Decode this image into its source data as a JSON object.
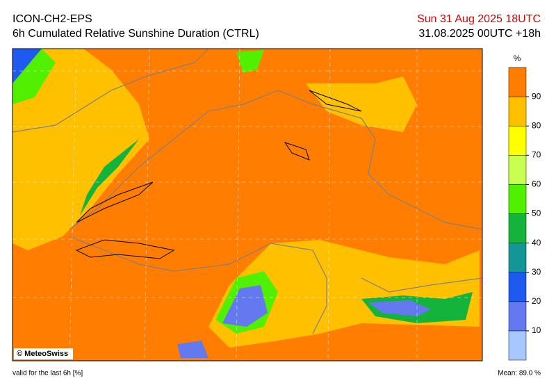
{
  "header": {
    "model": "ICON-CH2-EPS",
    "product": "6h Cumulated Relative Sunshine Duration (CTRL)",
    "valid_time": "Sun 31 Aug 2025 18UTC",
    "run": "31.08.2025 00UTC +18h"
  },
  "map": {
    "credit": "© MeteoSwiss"
  },
  "colorbar": {
    "unit": "%",
    "ticks": [
      10,
      20,
      30,
      40,
      50,
      60,
      70,
      80,
      90
    ],
    "colors": [
      "#a6c8ff",
      "#6478f0",
      "#1e5af0",
      "#149696",
      "#14b43c",
      "#50f000",
      "#c8ff50",
      "#ffff00",
      "#ffc000",
      "#ff7d00"
    ]
  },
  "footer": {
    "note": "valid for the last 6h [%]",
    "mean": "Mean:  89.0 %"
  }
}
